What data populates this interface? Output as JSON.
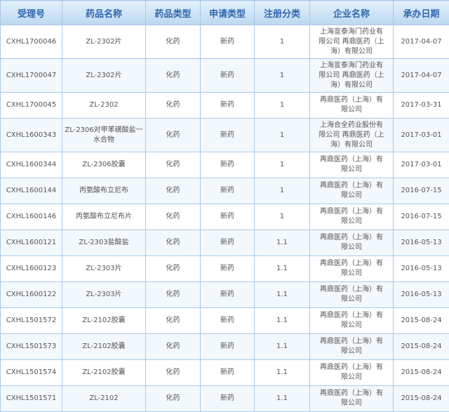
{
  "headers": [
    "受理号",
    "药品名称",
    "药品类型",
    "申请类型",
    "注册分类",
    "企业名称",
    "承办日期"
  ],
  "rows": [
    [
      "CXHL1700046",
      "ZL-2302片",
      "化药",
      "新药",
      "1",
      "上海宣泰海门药业有限公司 再鼎医药（上海）有限公司",
      "2017-04-07"
    ],
    [
      "CXHL1700047",
      "ZL-2302片",
      "化药",
      "新药",
      "1",
      "上海宣泰海门药业有限公司 再鼎医药（上海）有限公司",
      "2017-04-07"
    ],
    [
      "CXHL1700045",
      "ZL-2302",
      "化药",
      "新药",
      "1",
      "再鼎医药（上海）有限公司",
      "2017-03-31"
    ],
    [
      "CXHL1600343",
      "ZL-2306对甲苯磺酸盐一水合物",
      "化药",
      "新药",
      "1",
      "上海合全药业股份有限公司 再鼎医药（上海）有限公司",
      "2017-03-01"
    ],
    [
      "CXHL1600344",
      "ZL-2306胶囊",
      "化药",
      "新药",
      "1",
      "再鼎医药（上海）有限公司",
      "2017-03-01"
    ],
    [
      "CXHL1600144",
      "丙氨酸布立尼布",
      "化药",
      "新药",
      "1",
      "再鼎医药（上海）有限公司",
      "2016-07-15"
    ],
    [
      "CXHL1600146",
      "丙氨酸布立尼布片",
      "化药",
      "新药",
      "1",
      "再鼎医药（上海）有限公司",
      "2016-07-15"
    ],
    [
      "CXHL1600121",
      "ZL-2303盐酸盐",
      "化药",
      "新药",
      "1.1",
      "再鼎医药（上海）有限公司",
      "2016-05-13"
    ],
    [
      "CXHL1600123",
      "ZL-2303片",
      "化药",
      "新药",
      "1.1",
      "再鼎医药（上海）有限公司",
      "2016-05-13"
    ],
    [
      "CXHL1600122",
      "ZL-2303片",
      "化药",
      "新药",
      "1.1",
      "再鼎医药（上海）有限公司",
      "2016-05-13"
    ],
    [
      "CXHL1501572",
      "ZL-2102胶囊",
      "化药",
      "新药",
      "1.1",
      "再鼎医药（上海）有限公司",
      "2015-08-24"
    ],
    [
      "CXHL1501573",
      "ZL-2102胶囊",
      "化药",
      "新药",
      "1.1",
      "再鼎医药（上海）有限公司",
      "2015-08-24"
    ],
    [
      "CXHL1501574",
      "ZL-2102胶囊",
      "化药",
      "新药",
      "1.1",
      "再鼎医药（上海）有限公司",
      "2015-08-24"
    ],
    [
      "CXHL1501571",
      "ZL-2102",
      "化药",
      "新药",
      "1.1",
      "再鼎医药（上海）有限公司",
      "2015-08-24"
    ]
  ]
}
